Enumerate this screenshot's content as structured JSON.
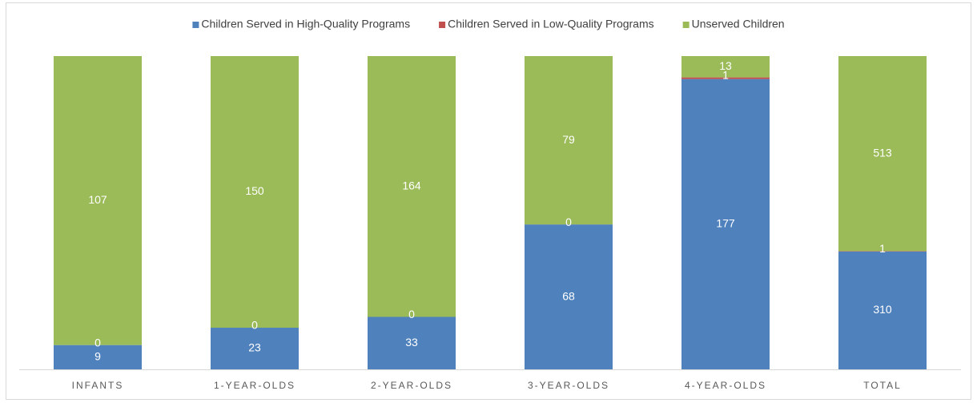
{
  "chart_data": {
    "type": "bar",
    "stacking": "percent",
    "categories": [
      "INFANTS",
      "1-YEAR-OLDS",
      "2-YEAR-OLDS",
      "3-YEAR-OLDS",
      "4-YEAR-OLDS",
      "TOTAL"
    ],
    "series": [
      {
        "name": "Children Served in High-Quality Programs",
        "color": "#4f81bd",
        "values": [
          9,
          23,
          33,
          68,
          177,
          310
        ]
      },
      {
        "name": "Children Served in Low-Quality Programs",
        "color": "#c0504d",
        "values": [
          0,
          0,
          0,
          0,
          1,
          1
        ]
      },
      {
        "name": "Unserved Children",
        "color": "#9bbb59",
        "values": [
          107,
          150,
          164,
          79,
          13,
          513
        ]
      }
    ],
    "legend": "top"
  }
}
